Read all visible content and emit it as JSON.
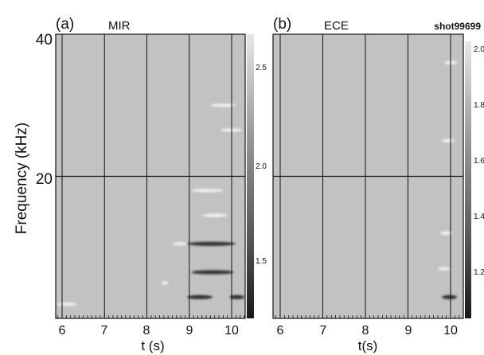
{
  "figure": {
    "shot_label": "shot99699",
    "ylabel": "Frequency (kHz)",
    "y_ticks": [
      "40",
      "20"
    ],
    "panels": [
      {
        "panel_label": "(a)",
        "title": "MIR",
        "xlabel": "t (s)",
        "x_ticks": [
          "6",
          "7",
          "8",
          "9",
          "10"
        ],
        "colorbar_ticks": [
          "2.5",
          "2.0",
          "1.5"
        ]
      },
      {
        "panel_label": "(b)",
        "title": "ECE",
        "xlabel": "t(s)",
        "x_ticks": [
          "6",
          "7",
          "8",
          "9",
          "10"
        ],
        "colorbar_ticks": [
          "2.0",
          "1.8",
          "1.6",
          "1.4",
          "1.2"
        ]
      }
    ]
  },
  "colors": {
    "background": "#c2c2c2",
    "line": "#111111",
    "dark_feature": "#262626",
    "bright_feature": "#f2f2f2"
  },
  "chart_data": [
    {
      "type": "heatmap",
      "title": "MIR",
      "xlabel": "t (s)",
      "ylabel": "Frequency (kHz)",
      "xlim": [
        5.8,
        10.5
      ],
      "ylim": [
        0,
        40
      ],
      "x_ticks": [
        6,
        7,
        8,
        9,
        10
      ],
      "y_ticks": [
        20,
        40
      ],
      "colorbar_range": [
        1.3,
        2.7
      ],
      "colorbar_ticks": [
        2.5,
        2.0,
        1.5
      ],
      "features": [
        {
          "t_start": 8.95,
          "t_end": 10.1,
          "f": 10.5,
          "tone": "dark"
        },
        {
          "t_start": 9.05,
          "t_end": 10.05,
          "f": 6.5,
          "tone": "dark"
        },
        {
          "t_start": 8.95,
          "t_end": 9.55,
          "f": 3.0,
          "tone": "dark"
        },
        {
          "t_start": 9.95,
          "t_end": 10.3,
          "f": 3.0,
          "tone": "dark"
        },
        {
          "t_start": 8.6,
          "t_end": 8.95,
          "f": 10.5,
          "tone": "bright"
        },
        {
          "t_start": 9.05,
          "t_end": 9.8,
          "f": 18.0,
          "tone": "bright"
        },
        {
          "t_start": 9.3,
          "t_end": 9.9,
          "f": 14.5,
          "tone": "bright"
        },
        {
          "t_start": 9.5,
          "t_end": 10.1,
          "f": 30.0,
          "tone": "bright"
        },
        {
          "t_start": 9.75,
          "t_end": 10.25,
          "f": 26.5,
          "tone": "bright"
        },
        {
          "t_start": 5.85,
          "t_end": 6.35,
          "f": 2.0,
          "tone": "bright"
        },
        {
          "t_start": 8.35,
          "t_end": 8.5,
          "f": 5.0,
          "tone": "bright"
        }
      ]
    },
    {
      "type": "heatmap",
      "title": "ECE",
      "xlabel": "t(s)",
      "ylabel": "Frequency (kHz)",
      "xlim": [
        5.8,
        10.5
      ],
      "ylim": [
        0,
        40
      ],
      "x_ticks": [
        6,
        7,
        8,
        9,
        10
      ],
      "y_ticks": [
        20,
        40
      ],
      "colorbar_range": [
        1.1,
        2.05
      ],
      "colorbar_ticks": [
        2.0,
        1.8,
        1.6,
        1.4,
        1.2
      ],
      "features": [
        {
          "t_start": 9.8,
          "t_end": 10.15,
          "f": 3.0,
          "tone": "dark"
        },
        {
          "t_start": 9.7,
          "t_end": 10.0,
          "f": 7.0,
          "tone": "bright"
        },
        {
          "t_start": 9.75,
          "t_end": 10.05,
          "f": 12.0,
          "tone": "bright"
        },
        {
          "t_start": 9.8,
          "t_end": 10.1,
          "f": 25.0,
          "tone": "bright"
        },
        {
          "t_start": 9.85,
          "t_end": 10.15,
          "f": 36.0,
          "tone": "bright"
        }
      ]
    }
  ]
}
